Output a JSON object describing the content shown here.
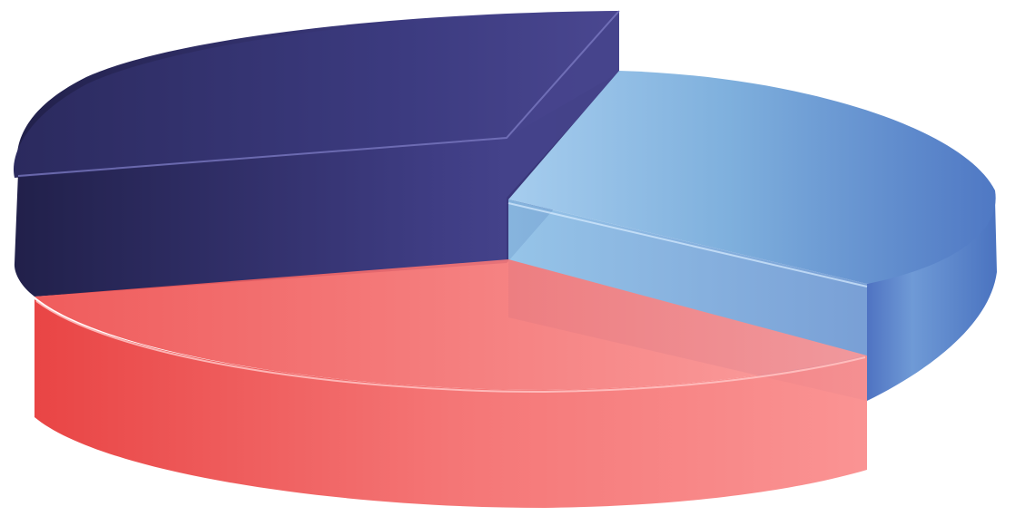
{
  "chart_data": {
    "type": "pie",
    "style": "3d-exploded",
    "legend": "none",
    "slices": [
      {
        "key": "navy",
        "value": 36,
        "color": "#3f3f86"
      },
      {
        "key": "blue",
        "value": 26,
        "color": "#6f9fd6"
      },
      {
        "key": "red",
        "value": 38,
        "color": "#f06a6a"
      }
    ]
  }
}
